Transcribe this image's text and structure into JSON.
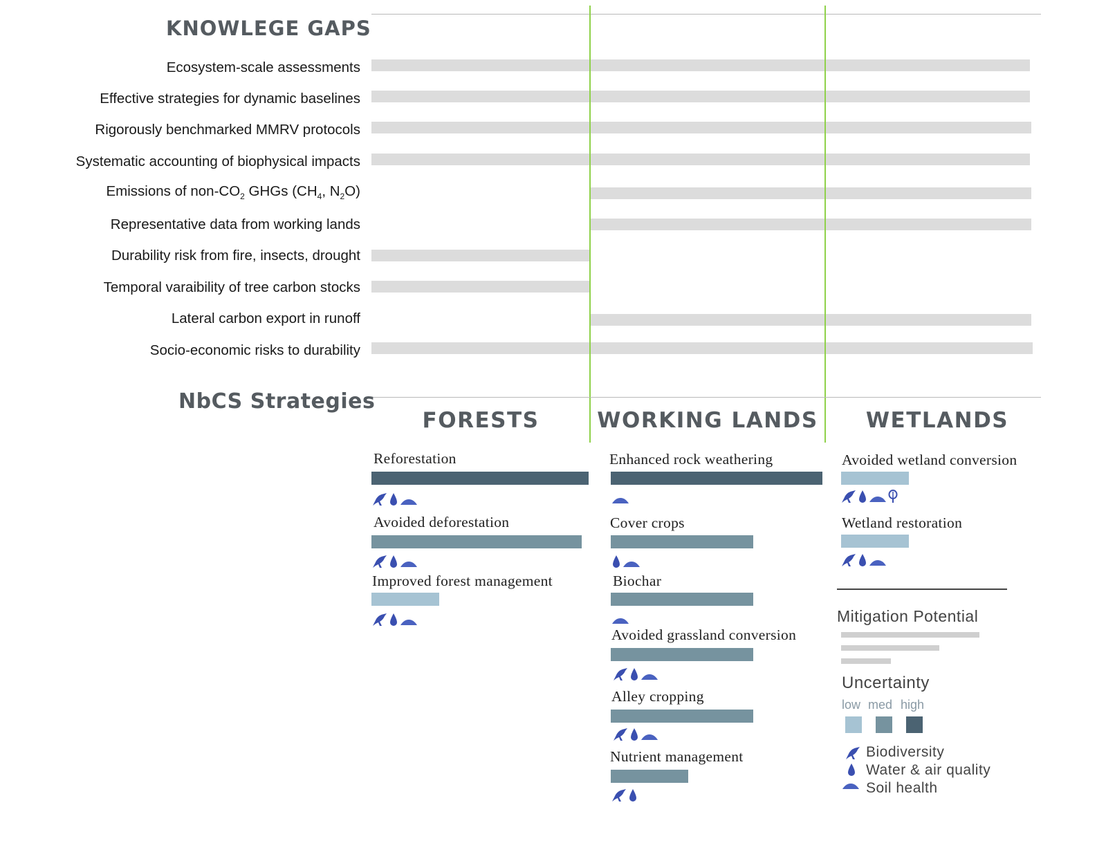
{
  "knowledge_gaps": {
    "title": "KNOWLEGE GAPS",
    "columns": [
      "Forests",
      "Working lands",
      "Wetlands"
    ],
    "items": [
      {
        "label": "Ecosystem-scale assessments",
        "applies_to": [
          "Forests",
          "Working lands",
          "Wetlands"
        ]
      },
      {
        "label": "Effective strategies for dynamic baselines",
        "applies_to": [
          "Forests",
          "Working lands",
          "Wetlands"
        ]
      },
      {
        "label": "Rigorously benchmarked MMRV protocols",
        "applies_to": [
          "Forests",
          "Working lands",
          "Wetlands"
        ]
      },
      {
        "label": "Systematic accounting of biophysical impacts",
        "applies_to": [
          "Forests",
          "Working lands",
          "Wetlands"
        ]
      },
      {
        "label_pre": "Emissions of non-CO",
        "label_sub1": "2",
        "label_mid1": " GHGs (CH",
        "label_sub2": "4",
        "label_mid2": ", N",
        "label_sub3": "2",
        "label_post": "O)",
        "applies_to": [
          "Working lands",
          "Wetlands"
        ]
      },
      {
        "label": "Representative data from working lands",
        "applies_to": [
          "Working lands",
          "Wetlands"
        ]
      },
      {
        "label": "Durability risk from fire, insects, drought",
        "applies_to": [
          "Forests"
        ]
      },
      {
        "label": "Temporal varaibility of tree carbon stocks",
        "applies_to": [
          "Forests"
        ]
      },
      {
        "label": "Lateral carbon export in runoff",
        "applies_to": [
          "Working lands",
          "Wetlands"
        ]
      },
      {
        "label": "Socio-economic risks to durability",
        "applies_to": [
          "Forests",
          "Working lands",
          "Wetlands"
        ]
      }
    ]
  },
  "strategies": {
    "title": "NbCS Strategies",
    "columns": [
      {
        "name": "FORESTS",
        "items": [
          {
            "label": "Reforestation",
            "mitigation": 1.0,
            "uncertainty": "high",
            "cobenefits": [
              "biodiversity",
              "water",
              "soil"
            ]
          },
          {
            "label": "Avoided deforestation",
            "mitigation": 0.97,
            "uncertainty": "med",
            "cobenefits": [
              "biodiversity",
              "water",
              "soil"
            ]
          },
          {
            "label": "Improved forest management",
            "mitigation": 0.31,
            "uncertainty": "low",
            "cobenefits": [
              "biodiversity",
              "water",
              "soil"
            ]
          }
        ]
      },
      {
        "name": "WORKING LANDS",
        "items": [
          {
            "label": "Enhanced rock weathering",
            "mitigation": 1.0,
            "uncertainty": "high",
            "cobenefits": [
              "soil"
            ]
          },
          {
            "label": "Cover crops",
            "mitigation": 0.67,
            "uncertainty": "med",
            "cobenefits": [
              "water",
              "soil"
            ]
          },
          {
            "label": "Biochar",
            "mitigation": 0.67,
            "uncertainty": "med",
            "cobenefits": [
              "soil"
            ]
          },
          {
            "label": "Avoided grassland conversion",
            "mitigation": 0.67,
            "uncertainty": "med",
            "cobenefits": [
              "biodiversity",
              "water",
              "soil"
            ]
          },
          {
            "label": "Alley cropping",
            "mitigation": 0.67,
            "uncertainty": "med",
            "cobenefits": [
              "biodiversity",
              "water",
              "soil"
            ]
          },
          {
            "label": "Nutrient management",
            "mitigation": 0.37,
            "uncertainty": "med",
            "cobenefits": [
              "biodiversity",
              "water"
            ]
          }
        ]
      },
      {
        "name": "WETLANDS",
        "items": [
          {
            "label": "Avoided wetland conversion",
            "mitigation": 0.31,
            "uncertainty": "low",
            "cobenefits": [
              "biodiversity",
              "water",
              "soil",
              "climate"
            ]
          },
          {
            "label": "Wetland restoration",
            "mitigation": 0.31,
            "uncertainty": "low",
            "cobenefits": [
              "biodiversity",
              "water",
              "soil"
            ]
          }
        ]
      }
    ]
  },
  "legend": {
    "mitigation_title": "Mitigation Potential",
    "uncertainty_title": "Uncertainty",
    "uncertainty_levels": [
      "low",
      "med",
      "high"
    ],
    "cobenefits": [
      {
        "icon": "bird-icon",
        "label": "Biodiversity"
      },
      {
        "icon": "water-drop-icon",
        "label": "Water & air quality"
      },
      {
        "icon": "soil-mound-icon",
        "label": "Soil health"
      }
    ]
  },
  "colors": {
    "gap_bar": "#dcdcdc",
    "divider": "#8fd14a",
    "uncertainty_low": "#a6c3d3",
    "uncertainty_med": "#76939f",
    "uncertainty_high": "#4b6372",
    "icon": "#3a4fb0"
  }
}
